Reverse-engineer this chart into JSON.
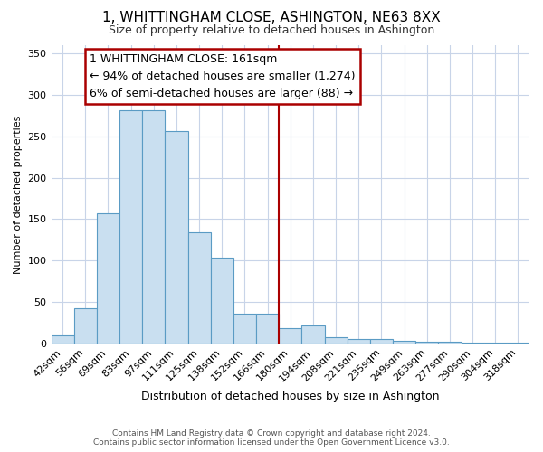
{
  "title": "1, WHITTINGHAM CLOSE, ASHINGTON, NE63 8XX",
  "subtitle": "Size of property relative to detached houses in Ashington",
  "xlabel": "Distribution of detached houses by size in Ashington",
  "ylabel": "Number of detached properties",
  "bin_labels": [
    "42sqm",
    "56sqm",
    "69sqm",
    "83sqm",
    "97sqm",
    "111sqm",
    "125sqm",
    "138sqm",
    "152sqm",
    "166sqm",
    "180sqm",
    "194sqm",
    "208sqm",
    "221sqm",
    "235sqm",
    "249sqm",
    "263sqm",
    "277sqm",
    "290sqm",
    "304sqm",
    "318sqm"
  ],
  "bar_heights": [
    10,
    42,
    157,
    281,
    281,
    256,
    134,
    103,
    36,
    36,
    18,
    22,
    7,
    5,
    5,
    3,
    2,
    2,
    1,
    1,
    1
  ],
  "bar_color": "#c9dff0",
  "bar_edge_color": "#5a9bc4",
  "vline_x": 9.5,
  "vline_color": "#aa0000",
  "annotation_text": "1 WHITTINGHAM CLOSE: 161sqm\n← 94% of detached houses are smaller (1,274)\n6% of semi-detached houses are larger (88) →",
  "annotation_box_color": "#ffffff",
  "annotation_box_edge_color": "#aa0000",
  "ylim": [
    0,
    360
  ],
  "yticks": [
    0,
    50,
    100,
    150,
    200,
    250,
    300,
    350
  ],
  "footer_line1": "Contains HM Land Registry data © Crown copyright and database right 2024.",
  "footer_line2": "Contains public sector information licensed under the Open Government Licence v3.0.",
  "background_color": "#ffffff",
  "grid_color": "#c8d4e8",
  "title_fontsize": 11,
  "subtitle_fontsize": 9,
  "ylabel_fontsize": 8,
  "xlabel_fontsize": 9,
  "tick_fontsize": 8,
  "annot_fontsize": 9
}
